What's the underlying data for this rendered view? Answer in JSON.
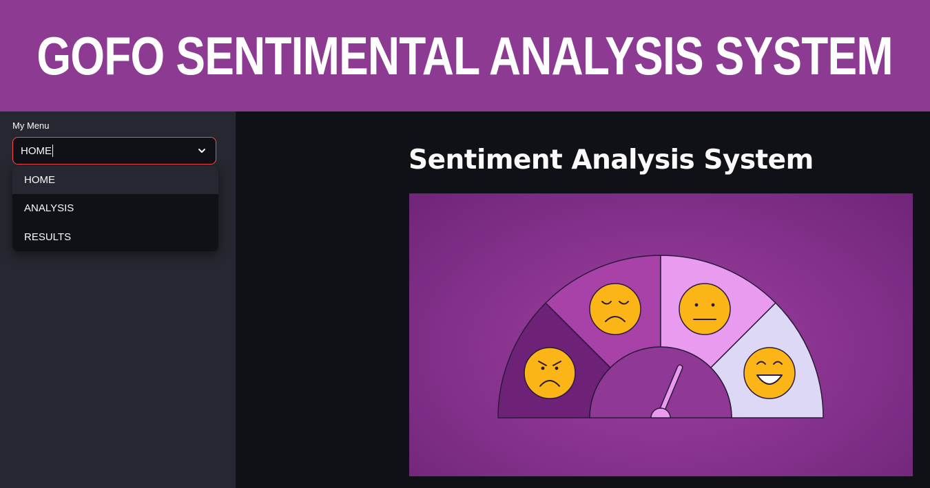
{
  "banner": {
    "title": "GOFO SENTIMENTAL ANALYSIS SYSTEM"
  },
  "sidebar": {
    "menu_label": "My Menu",
    "select_value": "HOME",
    "options": [
      "HOME",
      "ANALYSIS",
      "RESULTS"
    ],
    "accent_color": "#ff4b4b"
  },
  "main": {
    "title": "Sentiment Analysis System",
    "illustration": {
      "segments": [
        "angry",
        "sad",
        "neutral",
        "happy"
      ],
      "colors": [
        "#6d2177",
        "#a942a8",
        "#e99bef",
        "#dcd8f5"
      ],
      "face_color": "#fbb516"
    }
  },
  "colors": {
    "banner": "#8d3a93",
    "sidebar": "#262730",
    "background": "#0f1117"
  }
}
